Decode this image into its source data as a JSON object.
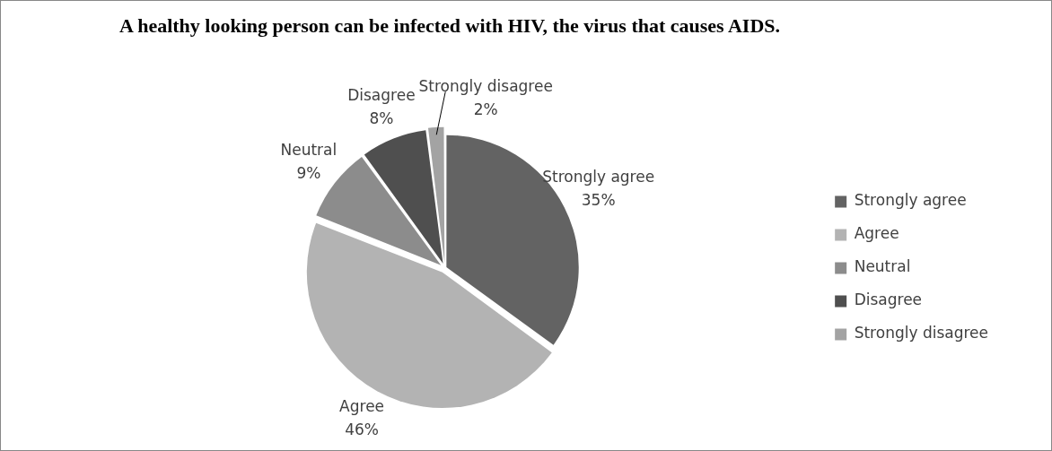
{
  "chart_data": {
    "type": "pie",
    "title": "A healthy looking person can be infected with HIV, the virus that causes AIDS.",
    "categories": [
      "Strongly agree",
      "Agree",
      "Neutral",
      "Disagree",
      "Strongly disagree"
    ],
    "values": [
      35,
      46,
      9,
      8,
      2
    ],
    "value_labels": [
      "35%",
      "46%",
      "9%",
      "8%",
      "2%"
    ],
    "colors": [
      "#636363",
      "#b3b3b3",
      "#8c8c8c",
      "#4f4f4f",
      "#a3a3a3"
    ],
    "legend": "right"
  }
}
